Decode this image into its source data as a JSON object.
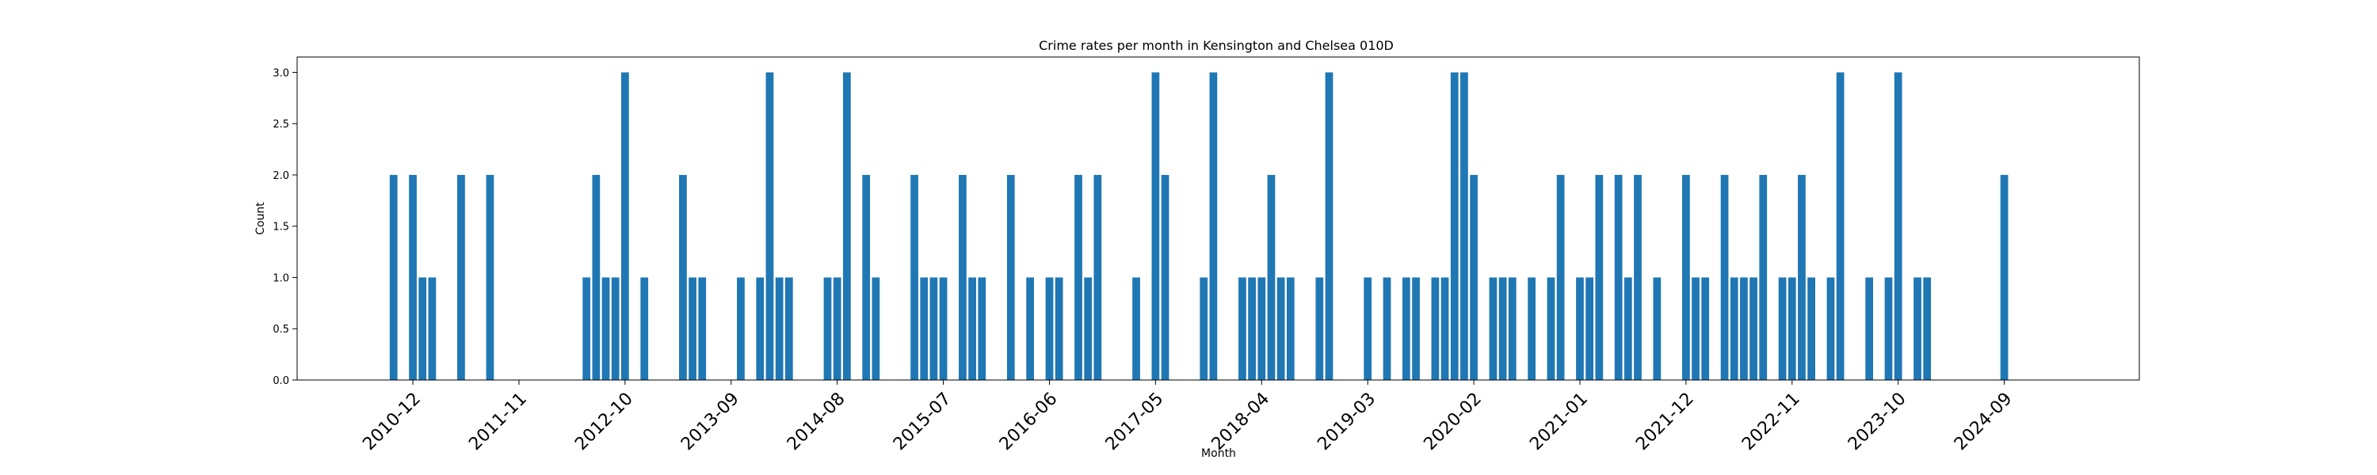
{
  "chart_data": {
    "type": "bar",
    "title": "Crime rates per month in Kensington and Chelsea 010D",
    "xlabel": "Month",
    "ylabel": "Count",
    "ylim": [
      0,
      3.15
    ],
    "xlim": [
      "2009-12",
      "2025-11"
    ],
    "yticks": [
      "0.0",
      "0.5",
      "1.0",
      "1.5",
      "2.0",
      "2.5",
      "3.0"
    ],
    "xticks": [
      "2010-12",
      "2011-11",
      "2012-10",
      "2013-09",
      "2014-08",
      "2015-07",
      "2016-06",
      "2017-05",
      "2018-04",
      "2019-03",
      "2020-02",
      "2021-01",
      "2021-12",
      "2022-11",
      "2023-10",
      "2024-09"
    ],
    "grid": false,
    "legend": "none",
    "bar_color": "#1f77b4",
    "x": [
      "2010-10",
      "2010-12",
      "2011-01",
      "2011-02",
      "2011-05",
      "2011-08",
      "2012-06",
      "2012-07",
      "2012-08",
      "2012-09",
      "2012-10",
      "2012-12",
      "2013-04",
      "2013-05",
      "2013-06",
      "2013-10",
      "2013-12",
      "2014-01",
      "2014-02",
      "2014-03",
      "2014-07",
      "2014-08",
      "2014-09",
      "2014-11",
      "2014-12",
      "2015-04",
      "2015-05",
      "2015-06",
      "2015-07",
      "2015-09",
      "2015-10",
      "2015-11",
      "2016-02",
      "2016-04",
      "2016-06",
      "2016-07",
      "2016-09",
      "2016-10",
      "2016-11",
      "2017-03",
      "2017-05",
      "2017-06",
      "2017-10",
      "2017-11",
      "2018-02",
      "2018-03",
      "2018-04",
      "2018-05",
      "2018-06",
      "2018-07",
      "2018-10",
      "2018-11",
      "2019-03",
      "2019-05",
      "2019-07",
      "2019-08",
      "2019-10",
      "2019-11",
      "2019-12",
      "2020-01",
      "2020-02",
      "2020-04",
      "2020-05",
      "2020-06",
      "2020-08",
      "2020-10",
      "2020-11",
      "2021-01",
      "2021-02",
      "2021-03",
      "2021-05",
      "2021-06",
      "2021-07",
      "2021-09",
      "2021-12",
      "2022-01",
      "2022-02",
      "2022-04",
      "2022-05",
      "2022-06",
      "2022-07",
      "2022-08",
      "2022-10",
      "2022-11",
      "2022-12",
      "2023-01",
      "2023-03",
      "2023-04",
      "2023-07",
      "2023-09",
      "2023-10",
      "2023-12",
      "2024-01",
      "2024-09"
    ],
    "values": [
      2,
      2,
      1,
      1,
      2,
      2,
      1,
      2,
      1,
      1,
      3,
      1,
      2,
      1,
      1,
      1,
      1,
      3,
      1,
      1,
      1,
      1,
      3,
      2,
      1,
      2,
      1,
      1,
      1,
      2,
      1,
      1,
      2,
      1,
      1,
      1,
      2,
      1,
      2,
      1,
      3,
      2,
      1,
      3,
      1,
      1,
      1,
      2,
      1,
      1,
      1,
      3,
      1,
      1,
      1,
      1,
      1,
      1,
      3,
      3,
      2,
      1,
      1,
      1,
      1,
      1,
      2,
      1,
      1,
      2,
      2,
      1,
      2,
      1,
      2,
      1,
      1,
      2,
      1,
      1,
      1,
      2,
      1,
      1,
      2,
      1,
      1,
      3,
      1,
      1,
      3,
      1,
      1,
      2
    ]
  }
}
